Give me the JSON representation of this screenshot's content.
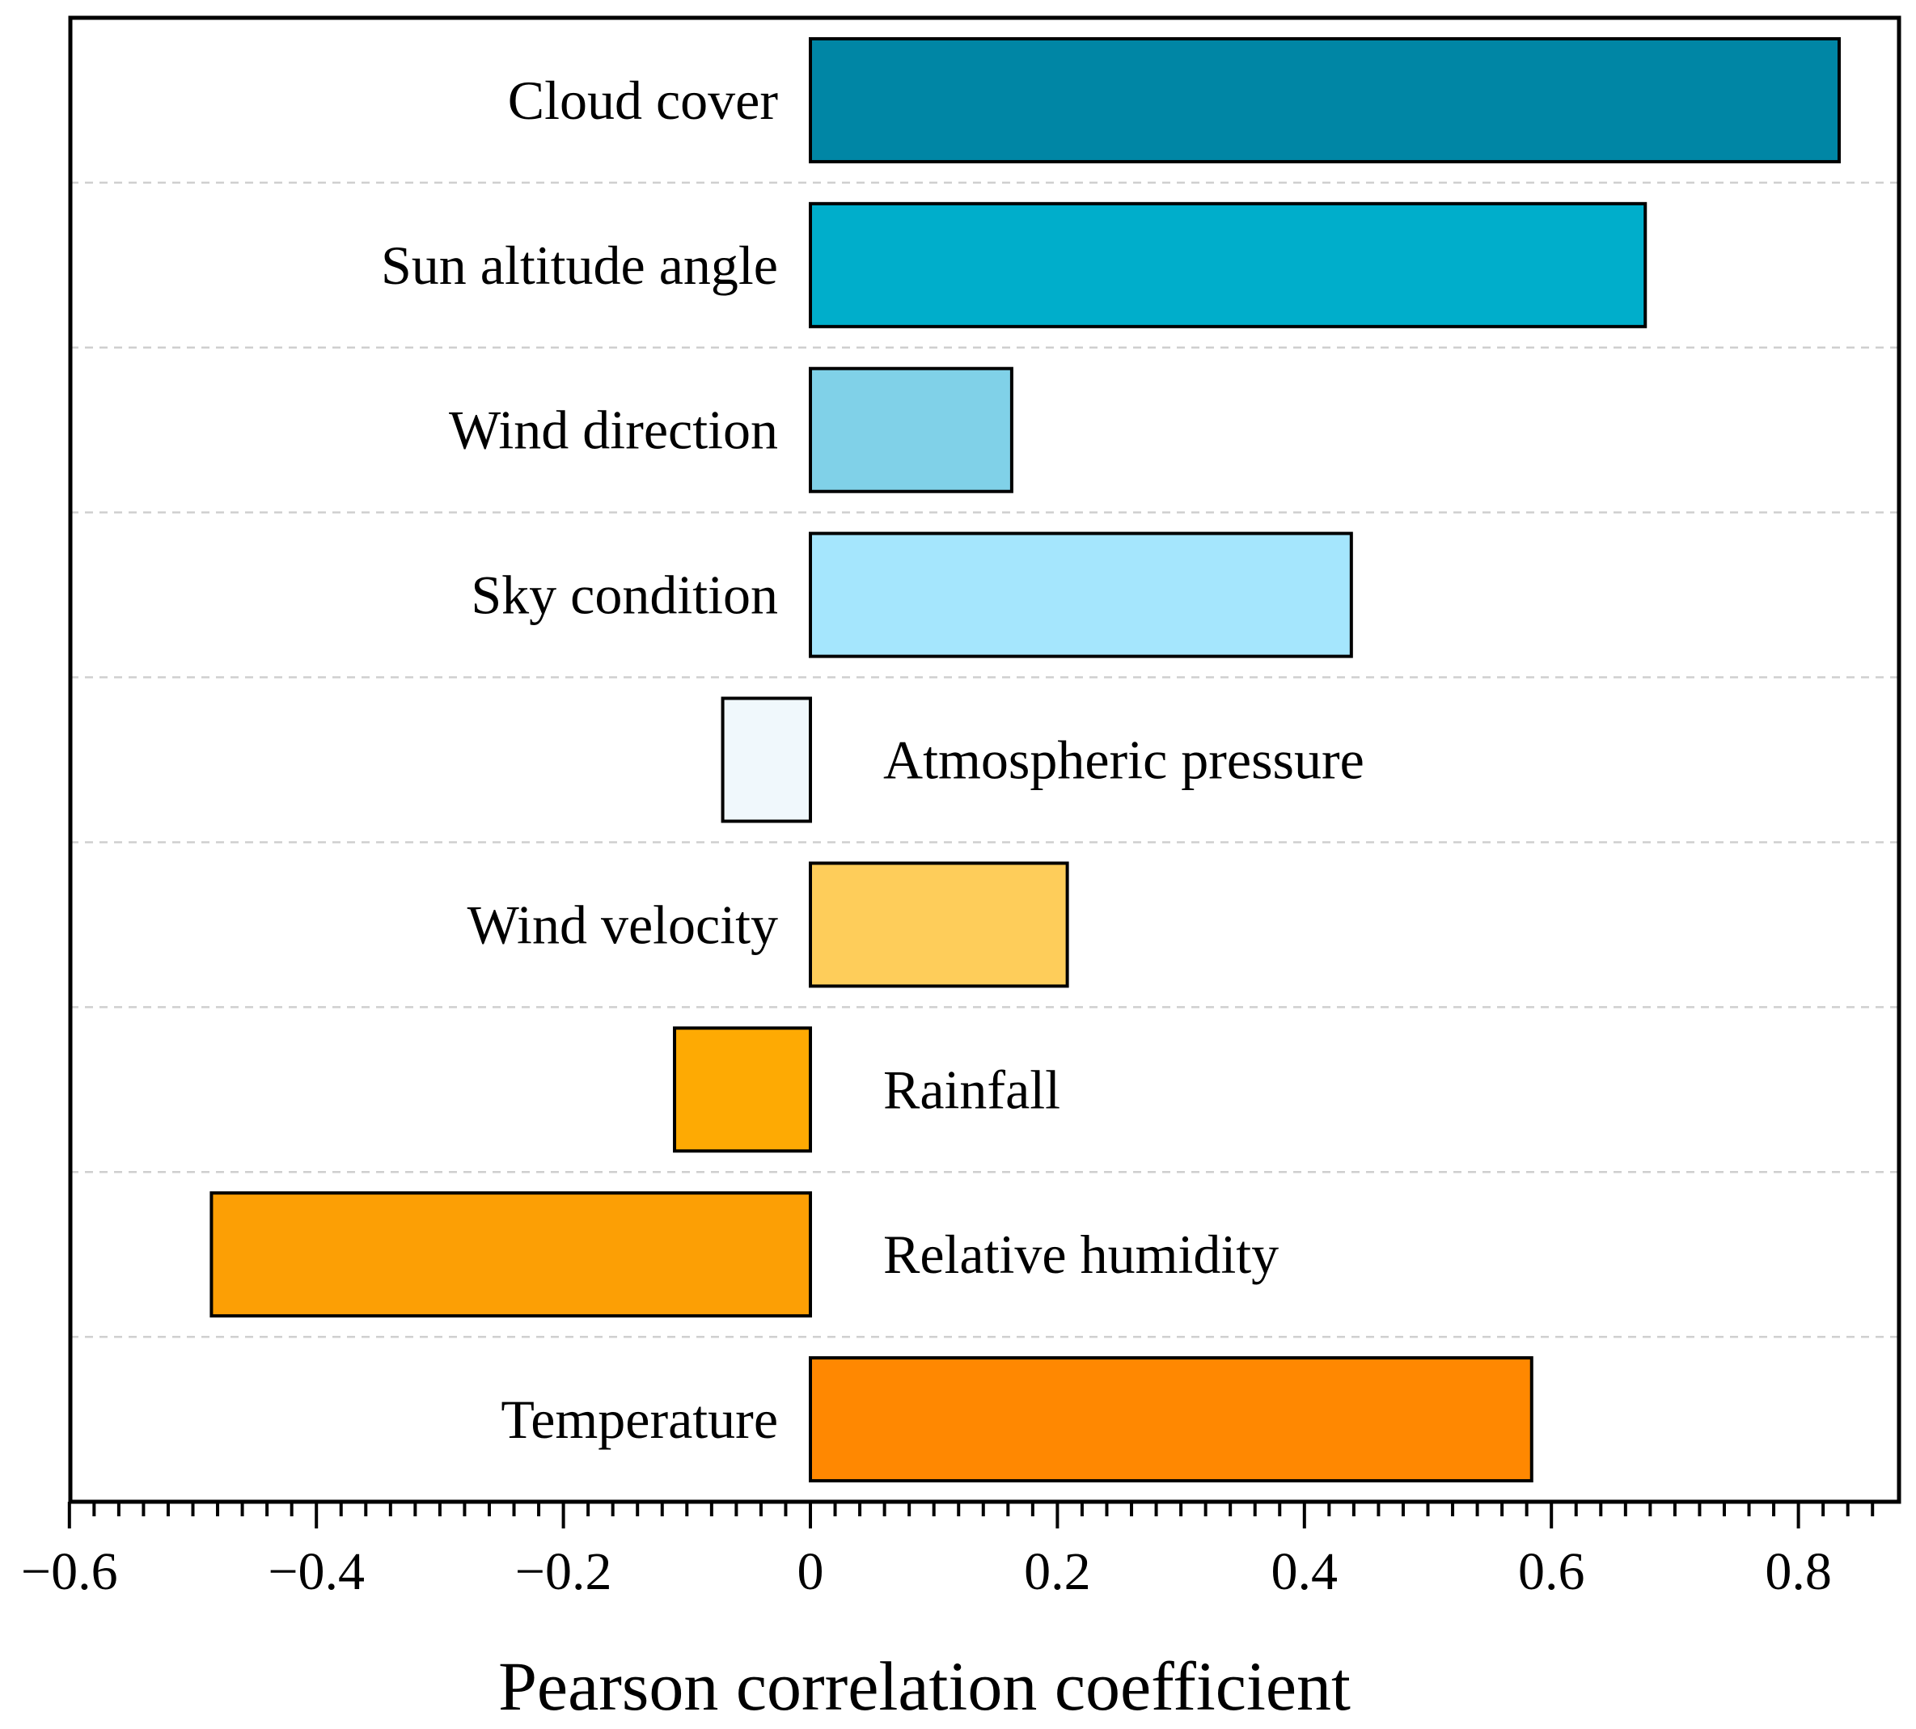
{
  "chart_data": {
    "type": "bar",
    "orientation": "horizontal",
    "xlabel": "Pearson correlation coefficient",
    "ylabel": "",
    "xlim": [
      -0.6,
      0.88
    ],
    "xticks": [
      -0.6,
      -0.4,
      -0.2,
      0,
      0.2,
      0.4,
      0.6,
      0.8
    ],
    "xtick_labels": [
      "−0.6",
      "−0.4",
      "−0.2",
      "0",
      "0.2",
      "0.4",
      "0.6",
      "0.8"
    ],
    "grid": "horizontal dashed separators",
    "categories": [
      "Cloud cover",
      "Sun altitude angle",
      "Wind direction",
      "Sky condition",
      "Atmospheric pressure",
      "Wind velocity",
      "Rainfall",
      "Relative humidity",
      "Temperature"
    ],
    "values": [
      0.833,
      0.676,
      0.163,
      0.438,
      -0.071,
      0.208,
      -0.11,
      -0.485,
      0.584
    ],
    "colors": [
      "#0086A5",
      "#00AECB",
      "#80D1E8",
      "#A5E6FD",
      "#F0F8FC",
      "#FECD5A",
      "#FEAA03",
      "#FC9F05",
      "#FF8801"
    ]
  }
}
